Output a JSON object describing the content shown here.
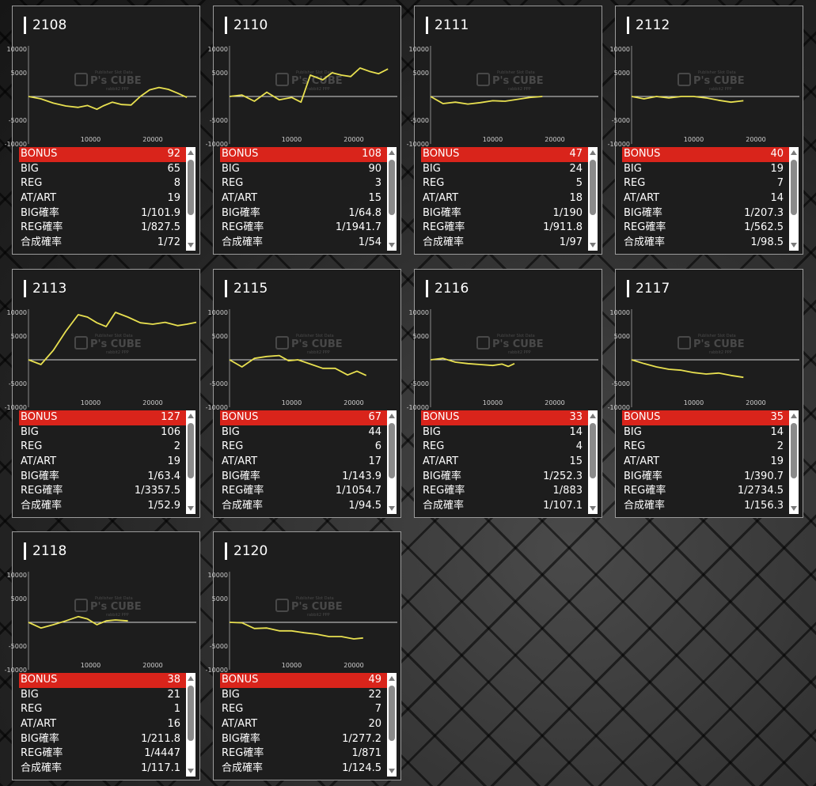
{
  "watermark": {
    "logo": "P's CUBE",
    "small_top": "Publisher Slot Data",
    "small_bottom": "rabbit2 PPP"
  },
  "colors": {
    "bonus_bg": "#d9241b",
    "line": "#e8e050",
    "card_bg": "#1d1d1d"
  },
  "chart_axes": {
    "y_ticks": [
      "10000",
      "5000",
      "-5000",
      "-10000"
    ],
    "x_ticks": [
      "10000",
      "20000"
    ]
  },
  "stat_labels": [
    "BONUS",
    "BIG",
    "REG",
    "AT/ART",
    "BIG確率",
    "REG確率",
    "合成確率"
  ],
  "machines": [
    {
      "id": "2108",
      "stats": [
        "92",
        "65",
        "8",
        "19",
        "1/101.9",
        "1/827.5",
        "1/72"
      ],
      "chart_data": {
        "type": "line",
        "xlim": [
          0,
          27000
        ],
        "ylim": [
          -10000,
          10000
        ],
        "x": [
          0,
          2000,
          4000,
          6000,
          8000,
          9500,
          11000,
          12000,
          13500,
          15000,
          16500,
          18000,
          19500,
          21000,
          22500,
          24000,
          25500
        ],
        "y": [
          0,
          -500,
          -1400,
          -2000,
          -2300,
          -1900,
          -2700,
          -2000,
          -1200,
          -1700,
          -1800,
          0,
          1400,
          1900,
          1500,
          700,
          -200
        ]
      }
    },
    {
      "id": "2110",
      "stats": [
        "108",
        "90",
        "3",
        "15",
        "1/64.8",
        "1/1941.7",
        "1/54"
      ],
      "chart_data": {
        "type": "line",
        "xlim": [
          0,
          27000
        ],
        "ylim": [
          -10000,
          10000
        ],
        "x": [
          0,
          2000,
          4000,
          6000,
          8000,
          10000,
          11500,
          13000,
          15000,
          16500,
          18000,
          19500,
          21000,
          22500,
          24000,
          25500
        ],
        "y": [
          0,
          300,
          -1000,
          900,
          -700,
          -200,
          -1200,
          4500,
          3500,
          5000,
          4500,
          4200,
          6000,
          5300,
          4800,
          5800
        ]
      }
    },
    {
      "id": "2111",
      "stats": [
        "47",
        "24",
        "5",
        "18",
        "1/190",
        "1/911.8",
        "1/97"
      ],
      "chart_data": {
        "type": "line",
        "xlim": [
          0,
          27000
        ],
        "ylim": [
          -10000,
          10000
        ],
        "x": [
          0,
          2000,
          4000,
          6000,
          8000,
          10000,
          12000,
          14000,
          16000,
          18000
        ],
        "y": [
          0,
          -1500,
          -1200,
          -1600,
          -1300,
          -900,
          -1000,
          -600,
          -200,
          0
        ]
      }
    },
    {
      "id": "2112",
      "stats": [
        "40",
        "19",
        "7",
        "14",
        "1/207.3",
        "1/562.5",
        "1/98.5"
      ],
      "chart_data": {
        "type": "line",
        "xlim": [
          0,
          27000
        ],
        "ylim": [
          -10000,
          10000
        ],
        "x": [
          0,
          2000,
          4000,
          6000,
          8000,
          10000,
          12000,
          14000,
          16000,
          18000
        ],
        "y": [
          0,
          -500,
          0,
          -300,
          0,
          0,
          -300,
          -800,
          -1200,
          -900
        ]
      }
    },
    {
      "id": "2113",
      "stats": [
        "127",
        "106",
        "2",
        "19",
        "1/63.4",
        "1/3357.5",
        "1/52.9"
      ],
      "chart_data": {
        "type": "line",
        "xlim": [
          0,
          27000
        ],
        "ylim": [
          -10000,
          10000
        ],
        "x": [
          0,
          2000,
          4000,
          6000,
          8000,
          9500,
          11000,
          12500,
          14000,
          16000,
          18000,
          20000,
          22000,
          24000,
          25500,
          27000
        ],
        "y": [
          0,
          -1000,
          2000,
          6000,
          9500,
          9000,
          7800,
          7000,
          10000,
          9000,
          7800,
          7500,
          7900,
          7200,
          7500,
          7900
        ]
      }
    },
    {
      "id": "2115",
      "stats": [
        "67",
        "44",
        "6",
        "17",
        "1/143.9",
        "1/1054.7",
        "1/94.5"
      ],
      "chart_data": {
        "type": "line",
        "xlim": [
          0,
          27000
        ],
        "ylim": [
          -10000,
          10000
        ],
        "x": [
          0,
          2000,
          4000,
          6000,
          8000,
          9500,
          11000,
          13000,
          15000,
          17000,
          19000,
          20500,
          22000
        ],
        "y": [
          0,
          -1500,
          300,
          700,
          900,
          -200,
          0,
          -900,
          -1800,
          -1800,
          -3200,
          -2400,
          -3300
        ]
      }
    },
    {
      "id": "2116",
      "stats": [
        "33",
        "14",
        "4",
        "15",
        "1/252.3",
        "1/883",
        "1/107.1"
      ],
      "chart_data": {
        "type": "line",
        "xlim": [
          0,
          27000
        ],
        "ylim": [
          -10000,
          10000
        ],
        "x": [
          0,
          2000,
          4000,
          6000,
          8000,
          10000,
          11500,
          12500,
          13500
        ],
        "y": [
          0,
          300,
          -500,
          -800,
          -1000,
          -1200,
          -900,
          -1400,
          -800
        ]
      }
    },
    {
      "id": "2117",
      "stats": [
        "35",
        "14",
        "2",
        "19",
        "1/390.7",
        "1/2734.5",
        "1/156.3"
      ],
      "chart_data": {
        "type": "line",
        "xlim": [
          0,
          27000
        ],
        "ylim": [
          -10000,
          10000
        ],
        "x": [
          0,
          2000,
          4000,
          6000,
          8000,
          10000,
          12000,
          14000,
          16000,
          18000
        ],
        "y": [
          0,
          -800,
          -1500,
          -2000,
          -2200,
          -2700,
          -3000,
          -2800,
          -3300,
          -3700
        ]
      }
    },
    {
      "id": "2118",
      "stats": [
        "38",
        "21",
        "1",
        "16",
        "1/211.8",
        "1/4447",
        "1/117.1"
      ],
      "chart_data": {
        "type": "line",
        "xlim": [
          0,
          27000
        ],
        "ylim": [
          -10000,
          10000
        ],
        "x": [
          0,
          2000,
          4000,
          6000,
          8000,
          9500,
          11000,
          12500,
          14000,
          16000
        ],
        "y": [
          0,
          -1200,
          -500,
          300,
          1200,
          700,
          -500,
          300,
          500,
          300
        ]
      }
    },
    {
      "id": "2120",
      "stats": [
        "49",
        "22",
        "7",
        "20",
        "1/277.2",
        "1/871",
        "1/124.5"
      ],
      "chart_data": {
        "type": "line",
        "xlim": [
          0,
          27000
        ],
        "ylim": [
          -10000,
          10000
        ],
        "x": [
          0,
          2000,
          4000,
          6000,
          8000,
          10000,
          12000,
          14000,
          16000,
          18000,
          20000,
          21500
        ],
        "y": [
          0,
          -100,
          -1300,
          -1200,
          -1800,
          -1800,
          -2200,
          -2500,
          -3000,
          -3000,
          -3500,
          -3300
        ]
      }
    }
  ]
}
